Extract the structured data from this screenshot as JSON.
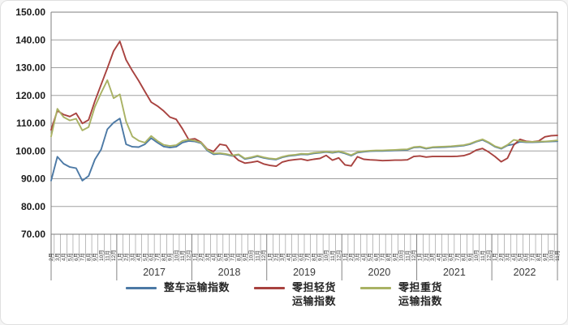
{
  "chart_data": {
    "type": "line",
    "title": "",
    "xlabel": "",
    "ylabel": "",
    "grid": true,
    "legend_position": "bottom",
    "ylim": [
      70,
      150
    ],
    "ytick_values": [
      150,
      140,
      130,
      120,
      110,
      100,
      90,
      80,
      70
    ],
    "ytick_labels": [
      "150.00",
      "140.00",
      "130.00",
      "120.00",
      "110.00",
      "100.00",
      "90.00",
      "80.00",
      "70.00"
    ],
    "year_labels": [
      "",
      "2017",
      "2018",
      "2019",
      "2020",
      "2021",
      "2022"
    ],
    "months_per_year": [
      11,
      12,
      12,
      12,
      12,
      12,
      11
    ],
    "categories": [
      "2月",
      "3月",
      "4月",
      "5月",
      "6月",
      "7月",
      "8月",
      "9月",
      "10月",
      "11月",
      "12月",
      "1月",
      "2月",
      "3月",
      "4月",
      "5月",
      "6月",
      "7月",
      "8月",
      "9月",
      "10月",
      "11月",
      "12月",
      "1月",
      "2月",
      "3月",
      "4月",
      "5月",
      "6月",
      "7月",
      "8月",
      "9月",
      "10月",
      "11月",
      "12月",
      "1月",
      "2月",
      "3月",
      "4月",
      "5月",
      "6月",
      "7月",
      "8月",
      "9月",
      "10月",
      "11月",
      "12月",
      "1月",
      "2月",
      "3月",
      "4月",
      "5月",
      "6月",
      "7月",
      "8月",
      "9月",
      "10月",
      "11月",
      "12月",
      "1月",
      "2月",
      "3月",
      "4月",
      "5月",
      "6月",
      "7月",
      "8月",
      "9月",
      "10月",
      "11月",
      "12月",
      "1月",
      "2月",
      "3月",
      "4月",
      "5月",
      "6月",
      "7月",
      "8月",
      "9月",
      "10月",
      "11月"
    ],
    "series": [
      {
        "name": "整车运输指数",
        "color": "#4c79a5",
        "values": [
          89.3,
          97.9,
          95.4,
          94.2,
          93.8,
          89.3,
          91.0,
          96.9,
          100.5,
          107.8,
          110.2,
          111.7,
          102.4,
          101.5,
          101.4,
          102.4,
          104.6,
          103.0,
          101.6,
          101.2,
          101.5,
          103.0,
          103.6,
          103.4,
          102.8,
          100.1,
          98.8,
          99.0,
          98.7,
          98.2,
          98.6,
          97.1,
          97.5,
          98.1,
          97.5,
          97.1,
          96.9,
          97.7,
          98.2,
          98.4,
          98.8,
          98.7,
          99.1,
          99.3,
          99.6,
          99.3,
          99.7,
          99.1,
          98.3,
          99.4,
          99.7,
          99.9,
          100.0,
          100.0,
          100.1,
          100.2,
          100.3,
          100.4,
          101.2,
          101.4,
          100.8,
          101.2,
          101.3,
          101.4,
          101.5,
          101.7,
          101.9,
          102.4,
          103.3,
          104.0,
          102.9,
          101.5,
          100.8,
          102.0,
          102.4,
          103.3,
          103.1,
          103.1,
          103.2,
          103.3,
          103.4,
          103.5
        ]
      },
      {
        "name": "零担轻货运输指数",
        "color": "#a8423f",
        "values": [
          107.6,
          114.5,
          113.1,
          112.4,
          113.6,
          109.9,
          111.2,
          117.9,
          123.9,
          129.8,
          136.0,
          139.5,
          132.8,
          128.9,
          125.3,
          121.4,
          117.6,
          116.2,
          114.4,
          112.2,
          111.4,
          108.0,
          104.1,
          104.4,
          103.1,
          100.6,
          99.8,
          102.4,
          102.0,
          98.6,
          96.6,
          95.6,
          95.9,
          96.3,
          95.3,
          94.8,
          94.5,
          96.0,
          96.6,
          96.9,
          97.1,
          96.6,
          97.0,
          97.3,
          98.4,
          96.7,
          97.5,
          95.0,
          94.6,
          97.9,
          97.0,
          96.8,
          96.7,
          96.5,
          96.6,
          96.7,
          96.7,
          96.8,
          98.0,
          98.2,
          97.8,
          98.0,
          98.0,
          98.0,
          98.0,
          98.1,
          98.3,
          99.0,
          100.3,
          100.9,
          99.6,
          98.0,
          96.1,
          97.4,
          102.1,
          104.2,
          103.5,
          103.3,
          103.6,
          105.1,
          105.5,
          105.6
        ]
      },
      {
        "name": "零担重货运输指数",
        "color": "#a9b264",
        "values": [
          105.2,
          115.2,
          112.2,
          111.0,
          111.6,
          107.4,
          108.6,
          115.9,
          120.9,
          125.5,
          119.0,
          120.4,
          110.6,
          105.2,
          103.7,
          103.0,
          105.4,
          103.6,
          102.2,
          101.8,
          102.1,
          103.6,
          104.1,
          103.7,
          103.0,
          100.4,
          99.1,
          99.2,
          98.9,
          98.4,
          98.8,
          97.3,
          97.7,
          98.3,
          97.7,
          97.3,
          97.1,
          97.9,
          98.4,
          98.6,
          99.0,
          98.9,
          99.3,
          99.5,
          99.8,
          99.5,
          99.9,
          99.3,
          98.5,
          99.6,
          99.9,
          100.1,
          100.2,
          100.2,
          100.3,
          100.4,
          100.5,
          100.6,
          101.4,
          101.6,
          101.0,
          101.4,
          101.5,
          101.6,
          101.7,
          101.9,
          102.1,
          102.6,
          103.5,
          104.2,
          103.1,
          101.7,
          101.0,
          102.2,
          104.0,
          103.6,
          103.3,
          103.3,
          103.4,
          103.4,
          103.6,
          103.8
        ]
      }
    ],
    "colors": {
      "gridline": "#a0a0a0",
      "axis": "#7f7f7f",
      "tick_text": "#1a1a1a",
      "year_text": "#3a3a3a",
      "month_text": "#333333"
    }
  },
  "legend": {
    "items": [
      {
        "line1": "整车运输指数",
        "line2": ""
      },
      {
        "line1": "零担轻货",
        "line2": "运输指数"
      },
      {
        "line1": "零担重货",
        "line2": "运输指数"
      }
    ]
  }
}
